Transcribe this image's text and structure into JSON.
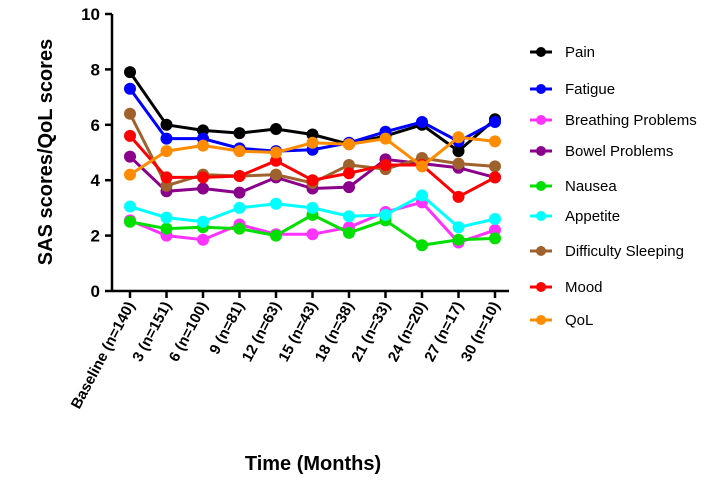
{
  "chart_data": {
    "type": "line",
    "xlabel": "Time (Months)",
    "ylabel": "SAS scores/QoL scores",
    "ylim": [
      0,
      10
    ],
    "yticks": [
      0,
      2,
      4,
      6,
      8,
      10
    ],
    "categories": [
      "Baseline (n=140)",
      "3 (n=151)",
      "6 (n=100)",
      "9 (n=81)",
      "12 (n=63)",
      "15 (n=43)",
      "18 (n=38)",
      "21 (n=33)",
      "24 (n=20)",
      "27 (n=17)",
      "30 (n=10)"
    ],
    "legend_position": "right",
    "grid": false,
    "series": [
      {
        "name": "Pain",
        "color": "#000000",
        "values": [
          7.9,
          6.0,
          5.8,
          5.7,
          5.85,
          5.65,
          5.3,
          5.6,
          6.0,
          5.05,
          6.2
        ]
      },
      {
        "name": "Fatigue",
        "color": "#0000ff",
        "values": [
          7.3,
          5.5,
          5.5,
          5.15,
          5.05,
          5.1,
          5.35,
          5.75,
          6.1,
          5.4,
          6.1
        ]
      },
      {
        "name": "Breathing Problems",
        "color": "#ff33ff",
        "values": [
          2.55,
          2.0,
          1.85,
          2.4,
          2.05,
          2.05,
          2.3,
          2.85,
          3.2,
          1.75,
          2.2
        ]
      },
      {
        "name": "Bowel Problems",
        "color": "#8b008b",
        "values": [
          4.85,
          3.6,
          3.7,
          3.55,
          4.1,
          3.7,
          3.75,
          4.75,
          4.6,
          4.45,
          4.1
        ]
      },
      {
        "name": "Nausea",
        "color": "#00e000",
        "values": [
          2.5,
          2.25,
          2.3,
          2.25,
          2.0,
          2.75,
          2.1,
          2.55,
          1.65,
          1.85,
          1.9
        ]
      },
      {
        "name": "Appetite",
        "color": "#00ffff",
        "values": [
          3.05,
          2.65,
          2.5,
          3.0,
          3.15,
          3.0,
          2.7,
          2.75,
          3.45,
          2.3,
          2.6
        ]
      },
      {
        "name": "Difficulty Sleeping",
        "color": "#a0622d",
        "values": [
          6.4,
          3.8,
          4.2,
          4.15,
          4.2,
          3.9,
          4.55,
          4.4,
          4.8,
          4.6,
          4.5
        ]
      },
      {
        "name": "Mood",
        "color": "#ff0000",
        "values": [
          5.6,
          4.1,
          4.1,
          4.15,
          4.7,
          4.0,
          4.25,
          4.55,
          4.55,
          3.4,
          4.1
        ]
      },
      {
        "name": "QoL",
        "color": "#ff8c00",
        "values": [
          4.2,
          5.05,
          5.25,
          5.05,
          5.0,
          5.35,
          5.3,
          5.5,
          4.5,
          5.55,
          5.4
        ]
      }
    ]
  }
}
